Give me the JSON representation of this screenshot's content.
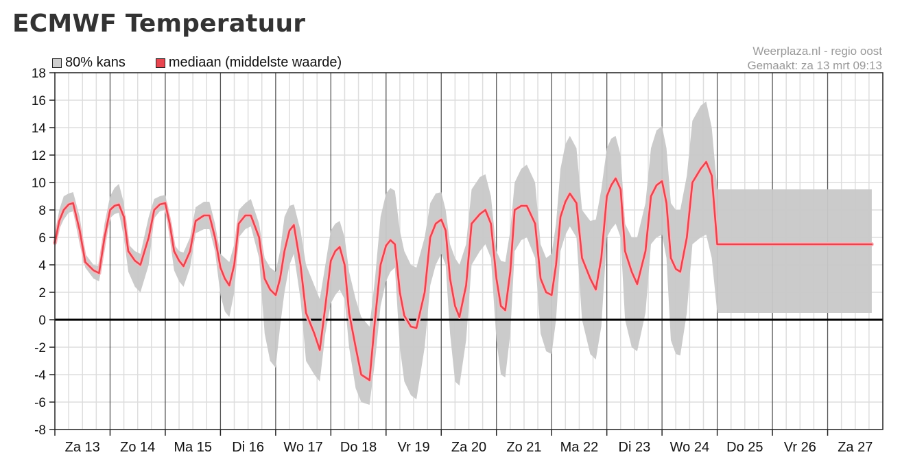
{
  "title": "ECMWF Temperatuur",
  "credits": {
    "source": "Weerplaza.nl - regio oost",
    "made": "Gemaakt: za 13 mrt 09:13"
  },
  "colors": {
    "band": "#c8c8c8",
    "median": "#e8454f",
    "median_glow": "#f6b7bc",
    "zero_line": "#000000",
    "grid_minor": "#dddddd",
    "grid_major": "#555555"
  },
  "chart_data": {
    "type": "area",
    "title": "ECMWF Temperatuur",
    "categories": [
      "Za 13",
      "Zo 14",
      "Ma 15",
      "Di 16",
      "Wo 17",
      "Do 18",
      "Vr 19",
      "Za 20",
      "Zo 21",
      "Ma 22",
      "Di 23",
      "Wo 24",
      "Do 25",
      "Vr 26",
      "Za 27"
    ],
    "ylim": [
      -8,
      18
    ],
    "yticks": [
      18,
      16,
      14,
      12,
      10,
      8,
      6,
      4,
      2,
      0,
      -2,
      -4,
      -6,
      -8
    ],
    "grid": true,
    "legend_position": "top-left",
    "x_unit": "days from Za 13 00:00",
    "series": [
      {
        "name": "mediaan (middelste waarde)",
        "x": [
          0,
          0.08,
          0.16,
          0.25,
          0.33,
          0.45,
          0.55,
          0.7,
          0.8,
          0.9,
          1.0,
          1.08,
          1.16,
          1.25,
          1.33,
          1.45,
          1.55,
          1.7,
          1.8,
          1.9,
          2.0,
          2.08,
          2.16,
          2.25,
          2.33,
          2.45,
          2.55,
          2.7,
          2.8,
          2.9,
          3.0,
          3.08,
          3.16,
          3.25,
          3.33,
          3.45,
          3.55,
          3.7,
          3.8,
          3.9,
          4.0,
          4.08,
          4.16,
          4.25,
          4.33,
          4.45,
          4.55,
          4.7,
          4.8,
          4.9,
          5.0,
          5.08,
          5.16,
          5.25,
          5.33,
          5.45,
          5.55,
          5.7,
          5.8,
          5.9,
          6.0,
          6.08,
          6.16,
          6.25,
          6.33,
          6.45,
          6.55,
          6.7,
          6.8,
          6.9,
          7.0,
          7.08,
          7.16,
          7.25,
          7.33,
          7.45,
          7.55,
          7.7,
          7.8,
          7.9,
          8.0,
          8.08,
          8.16,
          8.25,
          8.33,
          8.45,
          8.55,
          8.7,
          8.8,
          8.9,
          9.0,
          9.08,
          9.16,
          9.25,
          9.33,
          9.45,
          9.55,
          9.7,
          9.8,
          9.9,
          10.0,
          10.08,
          10.16,
          10.25,
          10.33,
          10.45,
          10.55,
          10.7,
          10.8,
          10.9,
          11.0,
          11.08,
          11.16,
          11.25,
          11.33,
          11.45,
          11.55,
          11.7,
          11.8,
          11.9,
          12.0,
          12.08,
          12.16,
          12.25,
          12.33,
          12.45,
          12.55,
          12.7,
          12.8,
          12.9,
          13.0,
          13.08,
          13.16,
          13.25,
          13.33,
          13.45,
          13.55,
          13.7,
          13.8,
          13.9,
          14.0,
          14.08,
          14.16,
          14.25,
          14.33,
          14.45,
          14.55,
          14.7,
          14.8
        ],
        "values": [
          5.6,
          7.2,
          8.0,
          8.4,
          8.5,
          6.5,
          4.2,
          3.6,
          3.4,
          6.0,
          8.0,
          8.3,
          8.4,
          7.5,
          5.0,
          4.3,
          4.0,
          6.0,
          8.0,
          8.4,
          8.5,
          7.0,
          5.0,
          4.3,
          3.9,
          5.0,
          7.2,
          7.6,
          7.6,
          6.0,
          3.8,
          3.0,
          2.5,
          4.0,
          7.0,
          7.6,
          7.6,
          6.0,
          3.0,
          2.2,
          1.8,
          3.0,
          5.0,
          6.5,
          6.9,
          4.0,
          0.5,
          -1.0,
          -2.2,
          1.0,
          4.3,
          5.0,
          5.3,
          4.0,
          0.5,
          -2.0,
          -4.0,
          -4.4,
          0.0,
          4.0,
          5.4,
          5.8,
          5.5,
          2.0,
          0.3,
          -0.5,
          -0.6,
          2.0,
          6.0,
          7.0,
          7.3,
          6.5,
          3.0,
          1.0,
          0.2,
          2.5,
          7.0,
          7.7,
          8.0,
          7.0,
          3.0,
          1.0,
          0.7,
          3.5,
          8.0,
          8.3,
          8.3,
          7.0,
          3.0,
          2.0,
          1.8,
          4.0,
          7.5,
          8.6,
          9.2,
          8.5,
          4.5,
          3.0,
          2.2,
          4.5,
          9.0,
          9.8,
          10.3,
          9.5,
          5.0,
          3.5,
          2.6,
          5.0,
          9.0,
          9.8,
          10.1,
          8.5,
          4.5,
          3.7,
          3.5,
          6.0,
          10.0,
          11.0,
          11.5,
          10.5,
          5.5,
          5.5,
          5.5,
          5.5,
          5.5,
          5.5,
          5.5,
          5.5,
          5.5,
          5.5,
          5.5,
          5.5,
          5.5,
          5.5,
          5.5,
          5.5,
          5.5,
          5.5,
          5.5,
          5.5,
          5.5,
          5.5,
          5.5,
          5.5,
          5.5,
          5.5,
          5.5,
          5.5,
          5.5
        ]
      },
      {
        "name": "80% kans",
        "x": [
          0,
          0.08,
          0.16,
          0.25,
          0.33,
          0.45,
          0.55,
          0.7,
          0.8,
          0.9,
          1.0,
          1.08,
          1.16,
          1.25,
          1.33,
          1.45,
          1.55,
          1.7,
          1.8,
          1.9,
          2.0,
          2.08,
          2.16,
          2.25,
          2.33,
          2.45,
          2.55,
          2.7,
          2.8,
          2.9,
          3.0,
          3.08,
          3.16,
          3.25,
          3.33,
          3.45,
          3.55,
          3.7,
          3.8,
          3.9,
          4.0,
          4.08,
          4.16,
          4.25,
          4.33,
          4.45,
          4.55,
          4.7,
          4.8,
          4.9,
          5.0,
          5.08,
          5.16,
          5.25,
          5.33,
          5.45,
          5.55,
          5.7,
          5.8,
          5.9,
          6.0,
          6.08,
          6.16,
          6.25,
          6.33,
          6.45,
          6.55,
          6.7,
          6.8,
          6.9,
          7.0,
          7.08,
          7.16,
          7.25,
          7.33,
          7.45,
          7.55,
          7.7,
          7.8,
          7.9,
          8.0,
          8.08,
          8.16,
          8.25,
          8.33,
          8.45,
          8.55,
          8.7,
          8.8,
          8.9,
          9.0,
          9.08,
          9.16,
          9.25,
          9.33,
          9.45,
          9.55,
          9.7,
          9.8,
          9.9,
          10.0,
          10.08,
          10.16,
          10.25,
          10.33,
          10.45,
          10.55,
          10.7,
          10.8,
          10.9,
          11.0,
          11.08,
          11.16,
          11.25,
          11.33,
          11.45,
          11.55,
          11.7,
          11.8,
          11.9,
          12.0,
          12.08,
          12.16,
          12.25,
          12.33,
          12.45,
          12.55,
          12.7,
          12.8,
          12.9,
          13.0,
          13.08,
          13.16,
          13.25,
          13.33,
          13.45,
          13.55,
          13.7,
          13.8,
          13.9,
          14.0,
          14.08,
          14.16,
          14.25,
          14.33,
          14.45,
          14.55,
          14.7,
          14.8
        ],
        "low": [
          5.2,
          6.6,
          7.3,
          7.8,
          7.9,
          5.5,
          3.8,
          3.0,
          2.8,
          5.0,
          7.4,
          7.7,
          7.8,
          6.0,
          3.5,
          2.4,
          2.0,
          4.0,
          7.4,
          7.9,
          8.0,
          6.0,
          3.6,
          2.8,
          2.4,
          3.8,
          6.3,
          6.6,
          6.6,
          5.0,
          1.8,
          0.6,
          0.2,
          2.0,
          6.0,
          6.6,
          6.8,
          4.5,
          -1.0,
          -3.0,
          -3.5,
          -0.5,
          2.0,
          4.0,
          4.8,
          1.5,
          -3.0,
          -4.0,
          -4.5,
          -1.0,
          1.2,
          1.8,
          2.2,
          1.5,
          -2.0,
          -5.0,
          -6.0,
          -6.2,
          -3.0,
          1.0,
          2.8,
          3.5,
          3.8,
          -2.0,
          -4.5,
          -5.5,
          -5.8,
          -2.0,
          2.5,
          4.0,
          4.8,
          4.0,
          -1.0,
          -4.5,
          -4.8,
          -1.5,
          4.0,
          5.0,
          5.5,
          4.5,
          -1.5,
          -4.0,
          -4.2,
          -1.0,
          5.0,
          5.8,
          6.0,
          4.5,
          -1.0,
          -2.3,
          -2.5,
          0.0,
          5.0,
          6.2,
          6.8,
          6.0,
          0.0,
          -2.5,
          -2.9,
          -0.5,
          6.0,
          6.6,
          7.0,
          6.0,
          0.0,
          -2.0,
          -2.3,
          0.5,
          5.5,
          6.0,
          6.2,
          4.5,
          -1.5,
          -2.5,
          -2.6,
          0.5,
          5.5,
          6.0,
          6.2,
          4.5,
          0.5,
          0.5,
          0.5,
          0.5,
          0.5,
          0.5,
          0.5,
          0.5,
          0.5,
          0.5,
          0.5,
          0.5,
          0.5,
          0.5,
          0.5,
          0.5,
          0.5,
          0.5,
          0.5,
          0.5,
          0.5,
          0.5,
          0.5,
          0.5,
          0.5,
          0.5,
          0.5,
          0.5,
          0.5
        ],
        "high": [
          6.2,
          8.0,
          9.0,
          9.2,
          9.3,
          7.5,
          4.8,
          4.0,
          3.9,
          7.0,
          9.0,
          9.6,
          9.9,
          8.5,
          5.5,
          5.0,
          4.8,
          7.5,
          8.8,
          9.0,
          9.1,
          7.5,
          5.5,
          5.0,
          4.9,
          6.0,
          8.2,
          8.6,
          8.6,
          7.0,
          4.8,
          4.5,
          4.2,
          5.5,
          8.0,
          8.5,
          8.8,
          7.0,
          4.5,
          3.8,
          3.5,
          5.0,
          7.5,
          8.3,
          8.4,
          6.5,
          4.0,
          2.5,
          1.5,
          4.0,
          6.5,
          7.0,
          7.2,
          6.0,
          3.5,
          1.5,
          0.2,
          -0.5,
          3.0,
          7.5,
          9.2,
          9.6,
          9.4,
          6.5,
          5.0,
          4.0,
          3.8,
          6.0,
          8.5,
          9.2,
          9.3,
          8.0,
          5.5,
          4.5,
          4.0,
          5.5,
          9.5,
          10.4,
          10.6,
          9.0,
          5.0,
          4.3,
          4.2,
          6.5,
          10.0,
          11.0,
          11.3,
          10.0,
          5.5,
          4.5,
          4.8,
          7.0,
          11.0,
          12.8,
          13.4,
          12.5,
          8.0,
          7.2,
          7.3,
          9.5,
          12.5,
          13.2,
          13.4,
          12.0,
          7.0,
          6.0,
          6.0,
          8.5,
          12.5,
          13.8,
          14.1,
          12.5,
          8.5,
          8.0,
          8.0,
          10.5,
          14.5,
          15.6,
          15.9,
          14.0,
          9.5,
          9.5,
          9.5,
          9.5,
          9.5,
          9.5,
          9.5,
          9.5,
          9.5,
          9.5,
          9.5,
          9.5,
          9.5,
          9.5,
          9.5,
          9.5,
          9.5,
          9.5,
          9.5,
          9.5,
          9.5,
          9.5,
          9.5,
          9.5,
          9.5,
          9.5,
          9.5,
          9.5,
          9.5
        ]
      }
    ]
  }
}
